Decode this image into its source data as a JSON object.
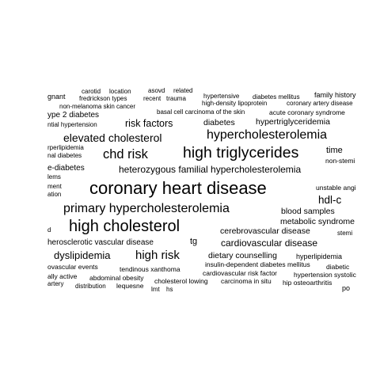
{
  "text_color": "#000000",
  "background_color": "#ffffff",
  "words": [
    {
      "id": "w0",
      "text": "gnant"
    },
    {
      "id": "w1",
      "text": "carotid"
    },
    {
      "id": "w2",
      "text": "location"
    },
    {
      "id": "w3",
      "text": "asovd"
    },
    {
      "id": "w4",
      "text": "related"
    },
    {
      "id": "w5",
      "text": "fredrickson types"
    },
    {
      "id": "w6",
      "text": "recent"
    },
    {
      "id": "w7",
      "text": "trauma"
    },
    {
      "id": "w8",
      "text": "hypertensive"
    },
    {
      "id": "w9",
      "text": "diabetes mellitus"
    },
    {
      "id": "w10",
      "text": "family history"
    },
    {
      "id": "w11",
      "text": "non-melanoma skin cancer"
    },
    {
      "id": "w12",
      "text": "high-density lipoprotein"
    },
    {
      "id": "w13",
      "text": "coronary artery disease"
    },
    {
      "id": "w14",
      "text": "ype 2 diabetes"
    },
    {
      "id": "w15",
      "text": "basal cell carcinoma of the skin"
    },
    {
      "id": "w16",
      "text": "acute coronary syndrome"
    },
    {
      "id": "w17",
      "text": "ntial hypertension"
    },
    {
      "id": "w18",
      "text": "risk factors"
    },
    {
      "id": "w19",
      "text": "diabetes"
    },
    {
      "id": "w20",
      "text": "hypertriglyceridemia"
    },
    {
      "id": "w21",
      "text": "elevated cholesterol"
    },
    {
      "id": "w22",
      "text": "hypercholesterolemia"
    },
    {
      "id": "w23",
      "text": "rperlipidemia"
    },
    {
      "id": "w24",
      "text": "chd risk"
    },
    {
      "id": "w25",
      "text": "high triglycerides"
    },
    {
      "id": "w26",
      "text": "time"
    },
    {
      "id": "w27",
      "text": "nal diabetes"
    },
    {
      "id": "w28",
      "text": "non-stemi"
    },
    {
      "id": "w29",
      "text": "e-diabetes"
    },
    {
      "id": "w30",
      "text": "heterozygous familial hypercholesterolemia"
    },
    {
      "id": "w31",
      "text": "lems"
    },
    {
      "id": "w32",
      "text": "ment"
    },
    {
      "id": "w33",
      "text": "coronary heart disease"
    },
    {
      "id": "w34",
      "text": "unstable angi"
    },
    {
      "id": "w35",
      "text": "ation"
    },
    {
      "id": "w36",
      "text": "hdl-c"
    },
    {
      "id": "w37",
      "text": "primary hypercholesterolemia"
    },
    {
      "id": "w38",
      "text": "blood samples"
    },
    {
      "id": "w39",
      "text": "metabolic syndrome"
    },
    {
      "id": "w40",
      "text": "d"
    },
    {
      "id": "w41",
      "text": "high cholesterol"
    },
    {
      "id": "w42",
      "text": "cerebrovascular disease"
    },
    {
      "id": "w43",
      "text": "stemi"
    },
    {
      "id": "w44",
      "text": "herosclerotic vascular disease"
    },
    {
      "id": "w45",
      "text": "tg"
    },
    {
      "id": "w46",
      "text": "cardiovascular disease"
    },
    {
      "id": "w47",
      "text": "dyslipidemia"
    },
    {
      "id": "w48",
      "text": "high risk"
    },
    {
      "id": "w49",
      "text": "dietary counselling"
    },
    {
      "id": "w50",
      "text": "hyperlipidemia"
    },
    {
      "id": "w51",
      "text": "insulin-dependent diabetes mellitus"
    },
    {
      "id": "w52",
      "text": "ovascular events"
    },
    {
      "id": "w53",
      "text": "tendinous xanthoma"
    },
    {
      "id": "w54",
      "text": "diabetic"
    },
    {
      "id": "w55",
      "text": "cardiovascular risk factor"
    },
    {
      "id": "w56",
      "text": "hypertension systolic"
    },
    {
      "id": "w57",
      "text": "ally active"
    },
    {
      "id": "w58",
      "text": "abdominal obesity"
    },
    {
      "id": "w59",
      "text": "cholesterol lowing"
    },
    {
      "id": "w60",
      "text": "carcinoma in situ"
    },
    {
      "id": "w61",
      "text": "hip osteoarthritis"
    },
    {
      "id": "w62",
      "text": "artery"
    },
    {
      "id": "w63",
      "text": "distribution"
    },
    {
      "id": "w64",
      "text": "lequesne"
    },
    {
      "id": "w65",
      "text": "lmt"
    },
    {
      "id": "w66",
      "text": "hs"
    },
    {
      "id": "w67",
      "text": "po"
    }
  ]
}
